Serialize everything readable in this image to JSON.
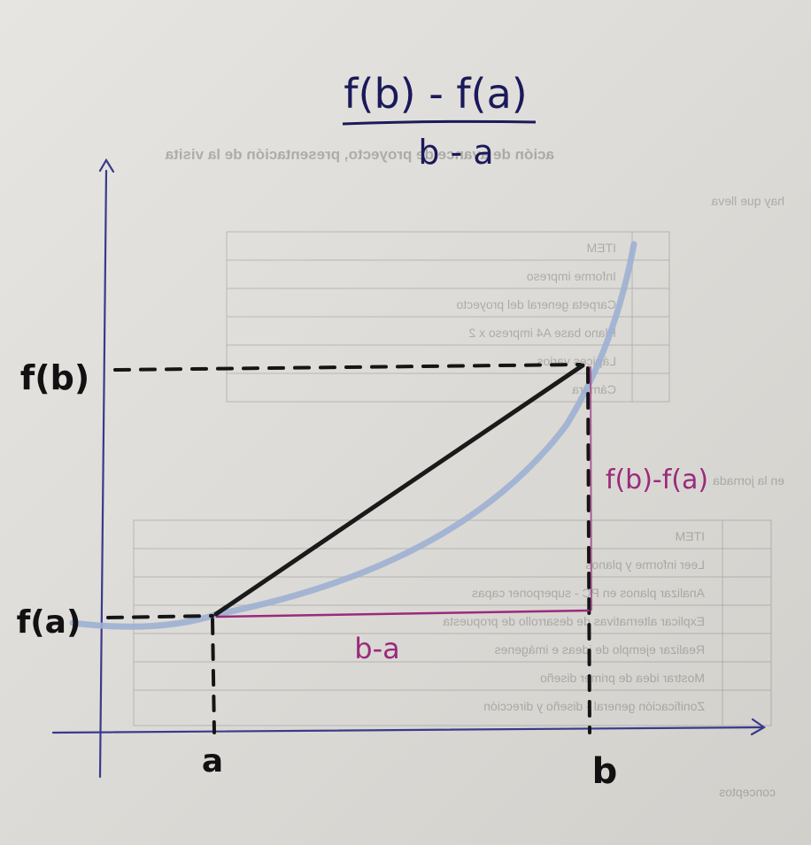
{
  "formula": {
    "numerator": "f(b) - f(a)",
    "denominator": "b - a"
  },
  "labels": {
    "y_top": "f(b)",
    "y_bottom": "f(a)",
    "x_left": "a",
    "x_right": "b",
    "delta_y": "f(b)-f(a)",
    "delta_x": "b-a"
  },
  "background_text": {
    "heading": "ación de avance de proyecto, presentación de la visita",
    "subheading": "hay que lleva",
    "lower_heading": "en la jornada",
    "footer": "conceptos",
    "table1": {
      "header": "ITEM",
      "rows": [
        "Informe impreso",
        "Carpeta general del proyecto",
        "Plano base A4 impreso x 2",
        "Lápices varios",
        "Cámara"
      ]
    },
    "table2": {
      "header": "ITEM",
      "rows": [
        "Leer informe y planos",
        "Analizar planos en PC - superponer capas",
        "Explicar alternativas de desarrollo de propuesta",
        "Realizar ejemplo de ideas e imágenes",
        "Mostrar idea de primer diseño",
        "Zonificación general - diseño y dirección"
      ]
    }
  },
  "colors": {
    "axis": "#3a3a8c",
    "curve": "#9db0d3",
    "secant": "#1a1a1a",
    "delta": "#9a2a7c",
    "ink": "#111111"
  }
}
